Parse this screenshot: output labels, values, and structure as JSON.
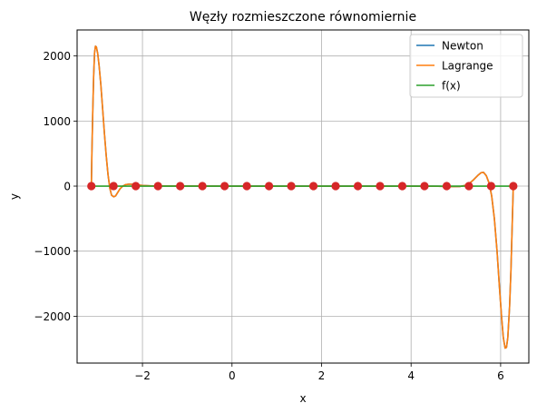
{
  "chart_data": {
    "type": "line",
    "title": "Węzły rozmieszczone równomiernie",
    "xlabel": "x",
    "ylabel": "y",
    "xlim": [
      -3.46,
      6.63
    ],
    "ylim": [
      -2720,
      2400
    ],
    "xticks": [
      -2,
      0,
      2,
      4,
      6
    ],
    "xtick_labels": [
      "−2",
      "0",
      "2",
      "4",
      "6"
    ],
    "yticks": [
      -2000,
      -1000,
      0,
      1000,
      2000
    ],
    "ytick_labels": [
      "−2000",
      "−1000",
      "0",
      "1000",
      "2000"
    ],
    "grid": true,
    "legend_position": "top-right",
    "series": [
      {
        "name": "Newton",
        "color": "#1f77b4",
        "points": [
          [
            -3.1416,
            0
          ],
          [
            -3.13,
            500
          ],
          [
            -3.11,
            1150
          ],
          [
            -3.09,
            1700
          ],
          [
            -3.07,
            2050
          ],
          [
            -3.05,
            2150
          ],
          [
            -3.03,
            2140
          ],
          [
            -3.0,
            2040
          ],
          [
            -2.97,
            1860
          ],
          [
            -2.93,
            1560
          ],
          [
            -2.89,
            1190
          ],
          [
            -2.85,
            810
          ],
          [
            -2.81,
            470
          ],
          [
            -2.77,
            180
          ],
          [
            -2.73,
            -30
          ],
          [
            -2.69,
            -140
          ],
          [
            -2.64,
            -165
          ],
          [
            -2.6,
            -150
          ],
          [
            -2.55,
            -95
          ],
          [
            -2.5,
            -40
          ],
          [
            -2.44,
            0
          ],
          [
            -2.38,
            22
          ],
          [
            -2.3,
            30
          ],
          [
            -2.2,
            28
          ],
          [
            -2.1,
            18
          ],
          [
            -2.0,
            10
          ],
          [
            -1.8,
            4
          ],
          [
            -1.5,
            2
          ],
          [
            -1.0,
            1
          ],
          [
            0,
            0
          ],
          [
            2,
            0
          ],
          [
            4,
            0
          ],
          [
            4.6,
            -2
          ],
          [
            4.9,
            -8
          ],
          [
            5.1,
            -5
          ],
          [
            5.2,
            10
          ],
          [
            5.3,
            40
          ],
          [
            5.4,
            100
          ],
          [
            5.5,
            170
          ],
          [
            5.56,
            205
          ],
          [
            5.62,
            210
          ],
          [
            5.68,
            160
          ],
          [
            5.74,
            50
          ],
          [
            5.8,
            -150
          ],
          [
            5.86,
            -500
          ],
          [
            5.92,
            -1000
          ],
          [
            5.97,
            -1520
          ],
          [
            6.02,
            -2000
          ],
          [
            6.06,
            -2330
          ],
          [
            6.1,
            -2490
          ],
          [
            6.13,
            -2480
          ],
          [
            6.16,
            -2330
          ],
          [
            6.2,
            -1850
          ],
          [
            6.23,
            -1300
          ],
          [
            6.26,
            -560
          ],
          [
            6.283,
            0
          ]
        ]
      },
      {
        "name": "Lagrange",
        "color": "#ff7f0e",
        "points": [
          [
            -3.1416,
            0
          ],
          [
            -3.13,
            500
          ],
          [
            -3.11,
            1150
          ],
          [
            -3.09,
            1700
          ],
          [
            -3.07,
            2050
          ],
          [
            -3.05,
            2150
          ],
          [
            -3.03,
            2140
          ],
          [
            -3.0,
            2040
          ],
          [
            -2.97,
            1860
          ],
          [
            -2.93,
            1560
          ],
          [
            -2.89,
            1190
          ],
          [
            -2.85,
            810
          ],
          [
            -2.81,
            470
          ],
          [
            -2.77,
            180
          ],
          [
            -2.73,
            -30
          ],
          [
            -2.69,
            -140
          ],
          [
            -2.64,
            -165
          ],
          [
            -2.6,
            -150
          ],
          [
            -2.55,
            -95
          ],
          [
            -2.5,
            -40
          ],
          [
            -2.44,
            0
          ],
          [
            -2.38,
            22
          ],
          [
            -2.3,
            30
          ],
          [
            -2.2,
            28
          ],
          [
            -2.1,
            18
          ],
          [
            -2.0,
            10
          ],
          [
            -1.8,
            4
          ],
          [
            -1.5,
            2
          ],
          [
            -1.0,
            1
          ],
          [
            0,
            0
          ],
          [
            2,
            0
          ],
          [
            4,
            0
          ],
          [
            4.6,
            -2
          ],
          [
            4.9,
            -8
          ],
          [
            5.1,
            -5
          ],
          [
            5.2,
            10
          ],
          [
            5.3,
            40
          ],
          [
            5.4,
            100
          ],
          [
            5.5,
            170
          ],
          [
            5.56,
            205
          ],
          [
            5.62,
            210
          ],
          [
            5.68,
            160
          ],
          [
            5.74,
            50
          ],
          [
            5.8,
            -150
          ],
          [
            5.86,
            -500
          ],
          [
            5.92,
            -1000
          ],
          [
            5.97,
            -1520
          ],
          [
            6.02,
            -2000
          ],
          [
            6.06,
            -2330
          ],
          [
            6.1,
            -2490
          ],
          [
            6.13,
            -2480
          ],
          [
            6.16,
            -2330
          ],
          [
            6.2,
            -1850
          ],
          [
            6.23,
            -1300
          ],
          [
            6.26,
            -560
          ],
          [
            6.283,
            0
          ]
        ]
      },
      {
        "name": "f(x)",
        "color": "#2ca02c",
        "points": [
          [
            -3.1416,
            0
          ],
          [
            -2.5,
            0
          ],
          [
            -1.5,
            0
          ],
          [
            0,
            0
          ],
          [
            1.5,
            0
          ],
          [
            3.0,
            0
          ],
          [
            4.5,
            0
          ],
          [
            6.283,
            0
          ]
        ]
      }
    ],
    "nodes": {
      "color": "#d62728",
      "x": [
        -3.1416,
        -2.6456,
        -2.1495,
        -1.6535,
        -1.1574,
        -0.6614,
        -0.1653,
        0.3307,
        0.8268,
        1.3228,
        1.8189,
        2.3149,
        2.811,
        3.307,
        3.8031,
        4.2991,
        4.7952,
        5.2912,
        5.7873,
        6.2832
      ],
      "y": [
        0,
        0,
        0,
        0,
        0,
        0,
        0,
        0,
        0,
        0,
        0,
        0,
        0,
        0,
        0,
        0,
        0,
        0,
        0,
        0
      ]
    }
  }
}
